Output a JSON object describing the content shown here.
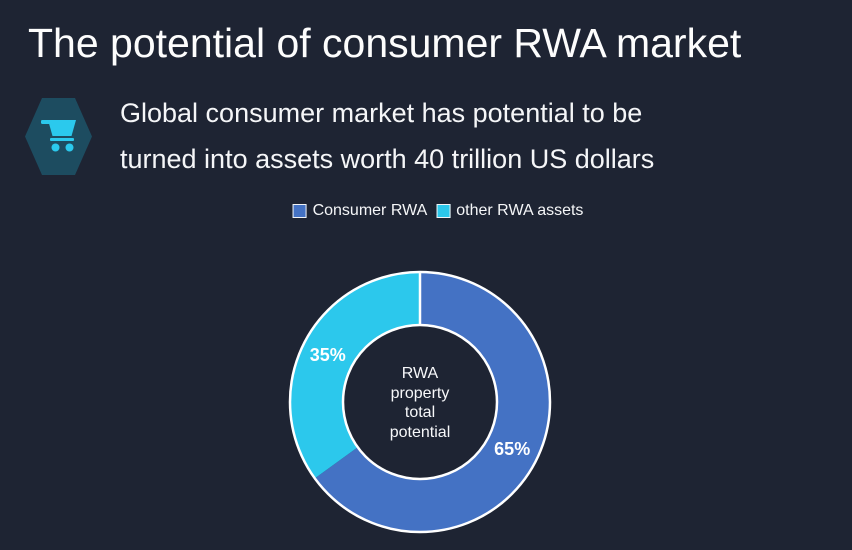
{
  "title": "The potential of consumer RWA market",
  "callout": {
    "icon": "shopping-cart",
    "line1": "Global consumer market has potential to be",
    "line2": "turned into assets worth 40 trillion US dollars"
  },
  "chart_data": {
    "type": "pie",
    "subtype": "donut",
    "title": "",
    "center_label": "RWA\nproperty\ntotal\npotential",
    "legend_position": "top",
    "direction": "clockwise",
    "start_angle_deg": 0,
    "inner_radius_ratio": 0.59,
    "segments": [
      {
        "label": "Consumer RWA",
        "value": 65,
        "data_label": "65%",
        "color": "#4472c4"
      },
      {
        "label": "other RWA assets",
        "value": 35,
        "data_label": "35%",
        "color": "#2cc8ec"
      }
    ]
  },
  "colors": {
    "background": "#1e2433",
    "text": "#ffffff",
    "hexagon_fill": "#1d4c60",
    "cart_icon": "#2bc9ed",
    "slice_border": "#ffffff"
  }
}
